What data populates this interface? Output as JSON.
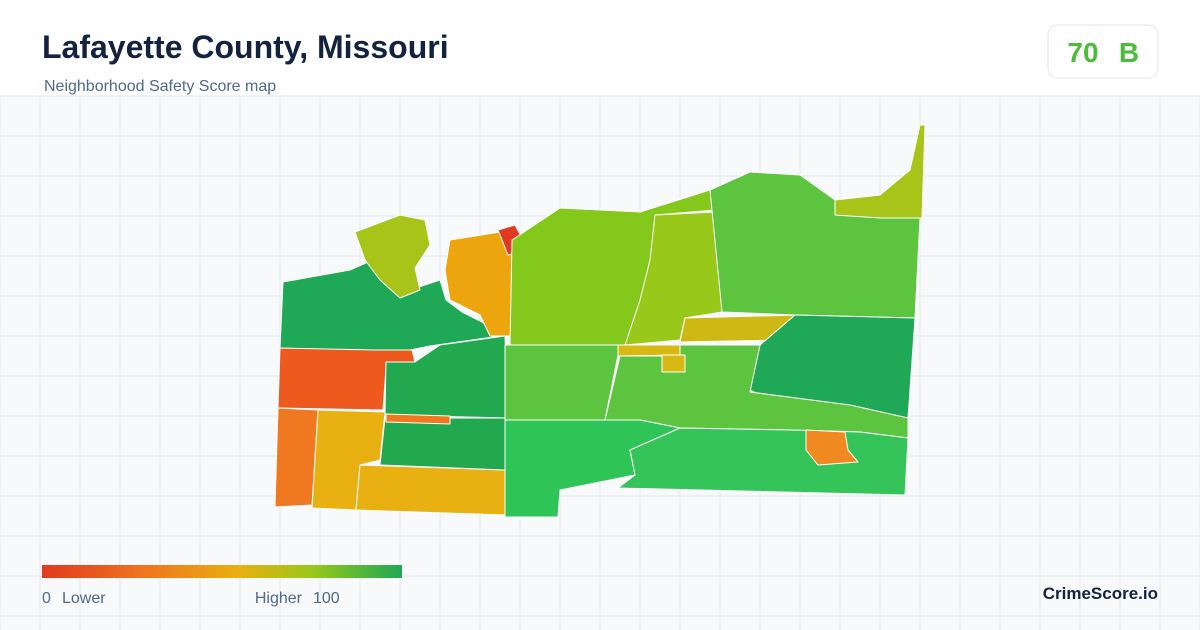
{
  "header": {
    "title": "Lafayette County, Missouri",
    "subtitle": "Neighborhood Safety Score map"
  },
  "score": {
    "value": "70",
    "grade": "B"
  },
  "legend": {
    "min": "0",
    "min_label": "Lower",
    "max_label": "Higher",
    "max": "100"
  },
  "footer": {
    "brand": "CrimeScore.io"
  }
}
